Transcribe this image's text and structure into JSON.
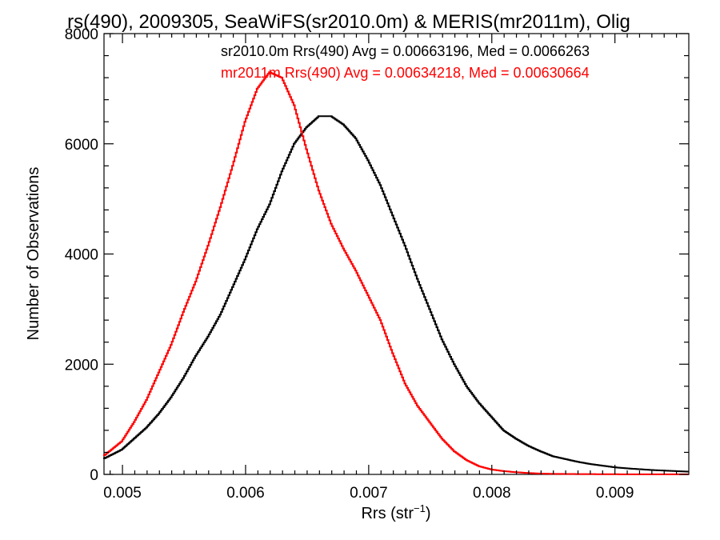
{
  "chart_data": {
    "type": "line",
    "title": "rs(490), 2009305, SeaWiFS(sr2010.0m) & MERIS(mr2011m), Olig",
    "xlabel": "Rrs (str",
    "xlabel_sup": "−1",
    "xlabel_close": ")",
    "ylabel": "Number of Observations",
    "xlim": [
      0.00485,
      0.0096
    ],
    "ylim": [
      0,
      8000
    ],
    "xticks": [
      0.005,
      0.006,
      0.007,
      0.008,
      0.009
    ],
    "xtick_labels": [
      "0.005",
      "0.006",
      "0.007",
      "0.008",
      "0.009"
    ],
    "yticks": [
      0,
      2000,
      4000,
      6000,
      8000
    ],
    "ytick_labels": [
      "0",
      "2000",
      "4000",
      "6000",
      "8000"
    ],
    "grid": false,
    "legend": [
      {
        "text": "sr2010.0m Rrs(490) Avg = 0.00663196, Med = 0.0066263",
        "color": "#000000"
      },
      {
        "text": "mr2011m Rrs(490) Avg = 0.00634218, Med = 0.00630664",
        "color": "#ff0000"
      }
    ],
    "series": [
      {
        "name": "sr2010.0m",
        "color": "#000000",
        "x": [
          0.00485,
          0.005,
          0.0051,
          0.0052,
          0.0053,
          0.0054,
          0.0055,
          0.0056,
          0.0057,
          0.0058,
          0.0059,
          0.006,
          0.0061,
          0.0062,
          0.0063,
          0.0064,
          0.0065,
          0.0066,
          0.0067,
          0.0068,
          0.0069,
          0.007,
          0.0071,
          0.0072,
          0.0073,
          0.0074,
          0.0075,
          0.0076,
          0.0077,
          0.0078,
          0.0079,
          0.008,
          0.0081,
          0.0082,
          0.0083,
          0.0084,
          0.0085,
          0.0086,
          0.0087,
          0.0088,
          0.0089,
          0.009,
          0.0091,
          0.0092,
          0.0093,
          0.0094,
          0.0095,
          0.0096
        ],
        "y": [
          280,
          450,
          650,
          850,
          1100,
          1400,
          1750,
          2150,
          2500,
          2900,
          3400,
          3900,
          4450,
          4900,
          5500,
          6000,
          6300,
          6500,
          6500,
          6350,
          6100,
          5700,
          5250,
          4700,
          4150,
          3550,
          3000,
          2450,
          2000,
          1600,
          1300,
          1050,
          800,
          650,
          520,
          420,
          330,
          280,
          230,
          190,
          160,
          130,
          110,
          95,
          80,
          70,
          60,
          50
        ]
      },
      {
        "name": "mr2011m",
        "color": "#ff0000",
        "x": [
          0.00485,
          0.005,
          0.0051,
          0.0052,
          0.0053,
          0.0054,
          0.0055,
          0.0056,
          0.0057,
          0.0058,
          0.0059,
          0.006,
          0.0061,
          0.0062,
          0.0063,
          0.0064,
          0.0065,
          0.0066,
          0.0067,
          0.0068,
          0.0069,
          0.007,
          0.0071,
          0.0072,
          0.0073,
          0.0074,
          0.0075,
          0.0076,
          0.0077,
          0.0078,
          0.0079,
          0.008,
          0.0081,
          0.0082,
          0.0083,
          0.0084,
          0.0085,
          0.0086,
          0.0087,
          0.0088,
          0.0089,
          0.009,
          0.0091,
          0.0092,
          0.0093,
          0.0094,
          0.0095,
          0.0096
        ],
        "y": [
          330,
          600,
          950,
          1350,
          1850,
          2350,
          2950,
          3500,
          4150,
          4850,
          5600,
          6400,
          7000,
          7300,
          7200,
          6700,
          5900,
          5150,
          4550,
          4100,
          3700,
          3250,
          2800,
          2200,
          1650,
          1250,
          950,
          650,
          420,
          260,
          150,
          90,
          60,
          40,
          25,
          15,
          10,
          8,
          6,
          5,
          4,
          3,
          2,
          2,
          1,
          1,
          1,
          1
        ]
      }
    ]
  }
}
